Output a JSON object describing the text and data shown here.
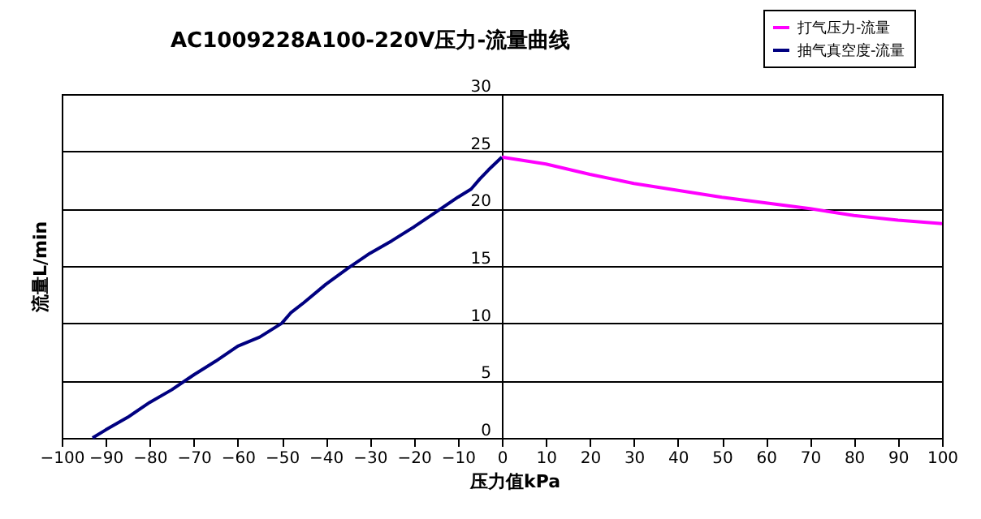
{
  "chart_data": {
    "type": "line",
    "title": "AC1009228A100-220V压力-流量曲线",
    "xlabel": "压力值kPa",
    "ylabel": "流量L/min",
    "xlim": [
      -100,
      100
    ],
    "xticks": [
      -100,
      -90,
      -80,
      -70,
      -60,
      -50,
      -40,
      -30,
      -20,
      -10,
      0,
      10,
      20,
      30,
      40,
      50,
      60,
      70,
      80,
      90,
      100
    ],
    "ylim": [
      0,
      30
    ],
    "yticks": [
      0,
      5,
      10,
      15,
      20,
      25,
      30
    ],
    "grid": "y",
    "legend": "top right",
    "series": [
      {
        "name": "打气压力-流量",
        "color": "#ff00ff",
        "x": [
          0,
          10,
          20,
          30,
          40,
          50,
          60,
          70,
          80,
          90,
          100
        ],
        "values": [
          24.5,
          23.9,
          23.0,
          22.2,
          21.6,
          21.0,
          20.5,
          20.0,
          19.4,
          19.0,
          18.7
        ]
      },
      {
        "name": "抽气真空度-流量",
        "color": "#000080",
        "x": [
          -93,
          -90,
          -85,
          -80,
          -75,
          -70,
          -65,
          -60,
          -55,
          -50,
          -48,
          -45,
          -40,
          -35,
          -30,
          -25,
          -20,
          -15,
          -10,
          -7,
          -5,
          -3,
          0
        ],
        "values": [
          0,
          0.7,
          1.8,
          3.1,
          4.2,
          5.5,
          6.7,
          8.0,
          8.8,
          10.0,
          10.9,
          11.8,
          13.4,
          14.8,
          16.1,
          17.2,
          18.4,
          19.7,
          21.0,
          21.7,
          22.6,
          23.4,
          24.5
        ]
      }
    ]
  }
}
